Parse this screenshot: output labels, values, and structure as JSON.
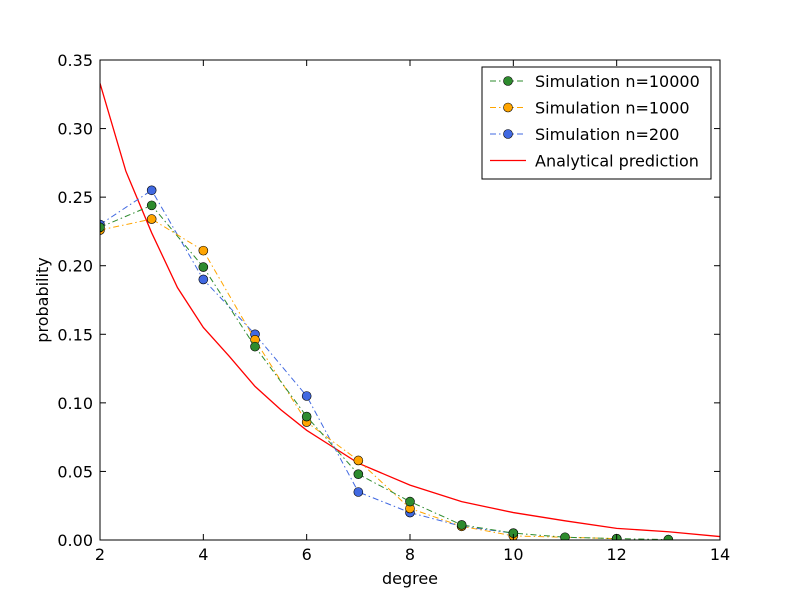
{
  "chart_data": {
    "type": "line",
    "xlabel": "degree",
    "ylabel": "probability",
    "xlim": [
      2,
      14
    ],
    "ylim": [
      0,
      0.35
    ],
    "xticks": [
      "2",
      "4",
      "6",
      "8",
      "10",
      "12",
      "14"
    ],
    "yticks": [
      "0.00",
      "0.05",
      "0.10",
      "0.15",
      "0.20",
      "0.25",
      "0.30",
      "0.35"
    ],
    "grid": false,
    "legend_position": "top-right",
    "series": [
      {
        "name": "Simulation n=10000",
        "style": "dashdot-markers",
        "color": "#2e8b2e",
        "x": [
          2,
          3,
          4,
          5,
          6,
          7,
          8,
          9,
          10,
          11,
          12,
          13
        ],
        "y": [
          0.228,
          0.244,
          0.199,
          0.141,
          0.09,
          0.048,
          0.028,
          0.011,
          0.005,
          0.002,
          0.001,
          0.0003
        ]
      },
      {
        "name": "Simulation n=1000",
        "style": "dashdot-markers",
        "color": "#ffa500",
        "x": [
          2,
          3,
          4,
          5,
          6,
          7,
          8,
          9,
          10,
          12
        ],
        "y": [
          0.226,
          0.234,
          0.211,
          0.146,
          0.086,
          0.058,
          0.023,
          0.01,
          0.003,
          0.001
        ]
      },
      {
        "name": "Simulation n=200",
        "style": "dashdot-markers",
        "color": "#4169e1",
        "x": [
          2,
          3,
          4,
          5,
          6,
          7,
          8,
          9,
          10
        ],
        "y": [
          0.23,
          0.255,
          0.19,
          0.15,
          0.105,
          0.035,
          0.02,
          0.01,
          0.005
        ]
      },
      {
        "name": "Analytical prediction",
        "style": "solid",
        "color": "#ff0000",
        "x": [
          2,
          2.5,
          3,
          3.5,
          4,
          4.5,
          5,
          5.5,
          6,
          6.5,
          7,
          7.5,
          8,
          8.5,
          9,
          9.5,
          10,
          11,
          12,
          13,
          14
        ],
        "y": [
          0.333,
          0.269,
          0.224,
          0.184,
          0.155,
          0.134,
          0.112,
          0.095,
          0.08,
          0.068,
          0.056,
          0.048,
          0.04,
          0.034,
          0.028,
          0.024,
          0.02,
          0.014,
          0.0085,
          0.006,
          0.0025
        ]
      }
    ]
  }
}
